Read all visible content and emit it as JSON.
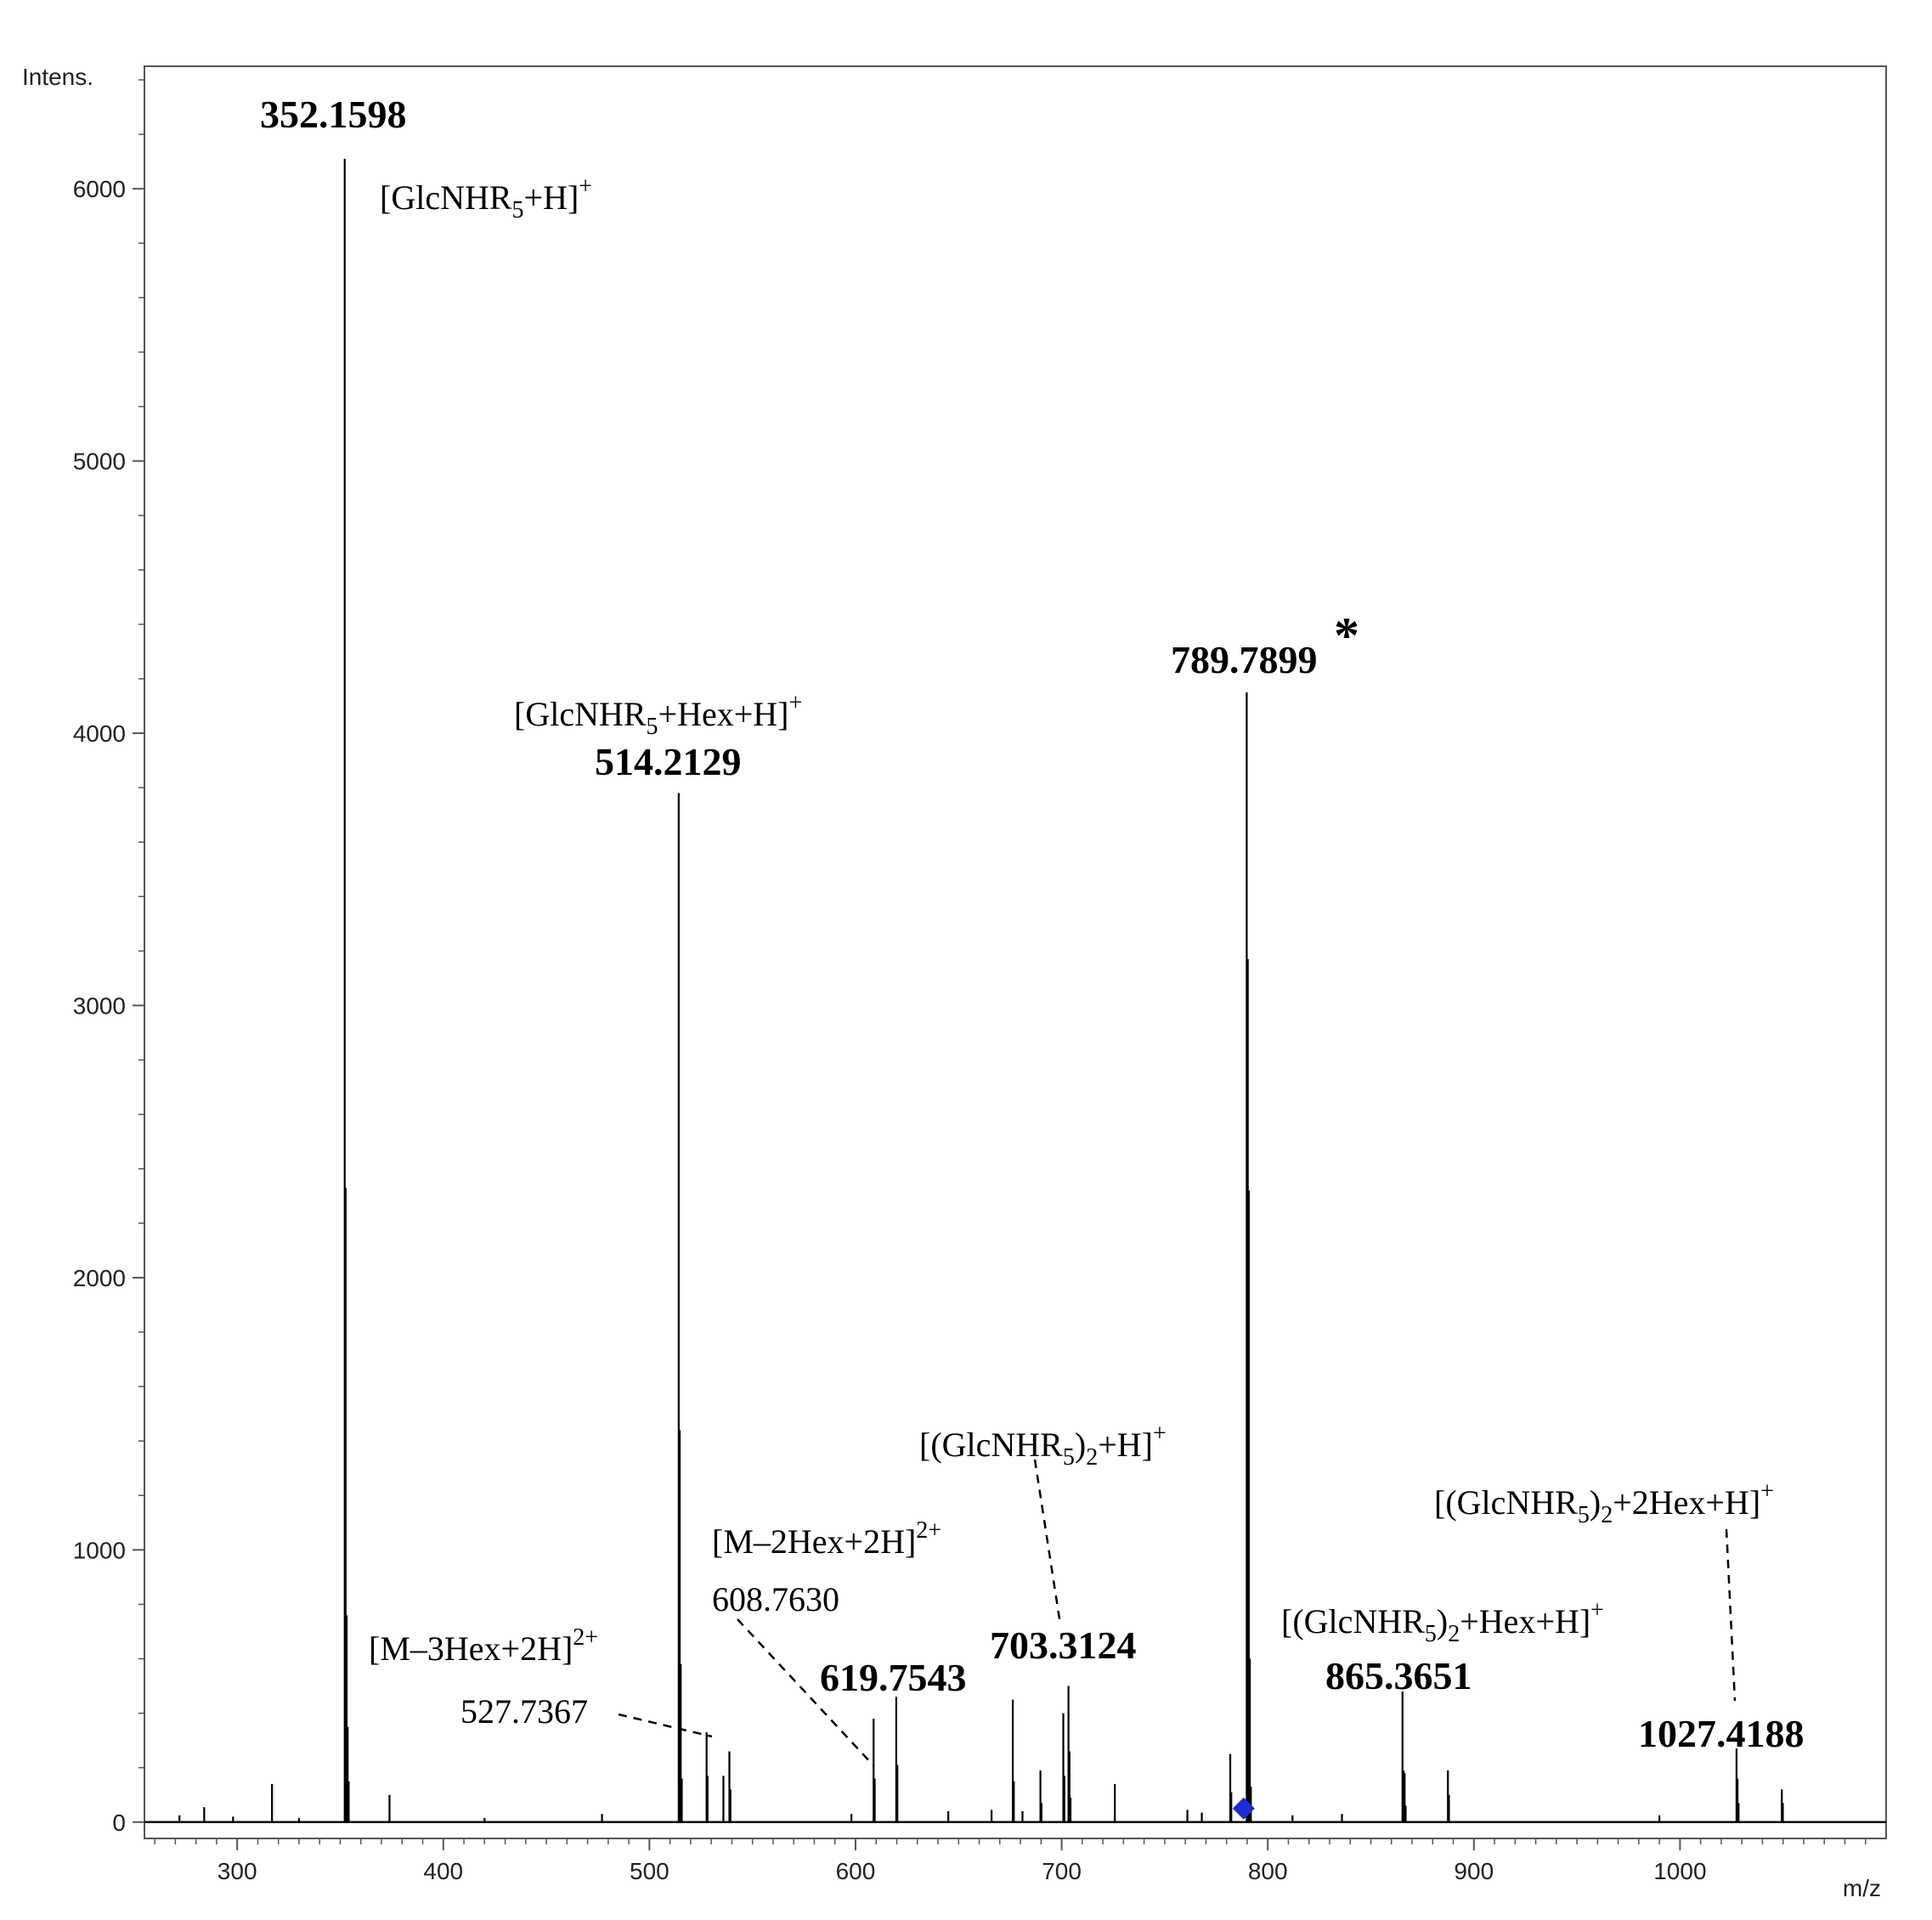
{
  "chart_data": {
    "type": "line",
    "y_axis_title": "Intens.",
    "x_axis_title": "m/z",
    "xlim": [
      255,
      1100
    ],
    "ylim": [
      -60,
      6450
    ],
    "x_ticks": [
      300,
      400,
      500,
      600,
      700,
      800,
      900,
      1000
    ],
    "y_ticks": [
      0,
      1000,
      2000,
      3000,
      4000,
      5000,
      6000
    ],
    "grid": false,
    "colors": {
      "trace": "#000000",
      "marker": "#1a2cd6"
    },
    "series": [
      {
        "peaks": [
          {
            "x": 272.0,
            "y": 25
          },
          {
            "x": 284.0,
            "y": 55
          },
          {
            "x": 298.0,
            "y": 20
          },
          {
            "x": 316.9,
            "y": 140
          },
          {
            "x": 330.0,
            "y": 15
          },
          {
            "x": 352.1598,
            "y": 6110
          },
          {
            "x": 352.6,
            "y": 2330
          },
          {
            "x": 353.1,
            "y": 760
          },
          {
            "x": 353.6,
            "y": 350
          },
          {
            "x": 354.1,
            "y": 150
          },
          {
            "x": 373.9,
            "y": 100
          },
          {
            "x": 420.0,
            "y": 15
          },
          {
            "x": 477.0,
            "y": 30
          },
          {
            "x": 514.2129,
            "y": 3780
          },
          {
            "x": 514.7,
            "y": 1440
          },
          {
            "x": 515.2,
            "y": 580
          },
          {
            "x": 515.7,
            "y": 160
          },
          {
            "x": 527.7367,
            "y": 330
          },
          {
            "x": 528.2,
            "y": 170
          },
          {
            "x": 535.9,
            "y": 170
          },
          {
            "x": 538.8,
            "y": 260
          },
          {
            "x": 539.3,
            "y": 120
          },
          {
            "x": 598.0,
            "y": 30
          },
          {
            "x": 608.763,
            "y": 380
          },
          {
            "x": 609.3,
            "y": 160
          },
          {
            "x": 619.7543,
            "y": 460
          },
          {
            "x": 620.3,
            "y": 210
          },
          {
            "x": 645.0,
            "y": 40
          },
          {
            "x": 666.0,
            "y": 45
          },
          {
            "x": 676.3,
            "y": 450
          },
          {
            "x": 676.8,
            "y": 150
          },
          {
            "x": 681.0,
            "y": 40
          },
          {
            "x": 689.7,
            "y": 190
          },
          {
            "x": 690.2,
            "y": 70
          },
          {
            "x": 700.8,
            "y": 400
          },
          {
            "x": 701.3,
            "y": 170
          },
          {
            "x": 703.3124,
            "y": 500
          },
          {
            "x": 703.8,
            "y": 260
          },
          {
            "x": 704.3,
            "y": 90
          },
          {
            "x": 725.8,
            "y": 140
          },
          {
            "x": 761.0,
            "y": 45
          },
          {
            "x": 768.0,
            "y": 35
          },
          {
            "x": 781.8,
            "y": 250
          },
          {
            "x": 782.3,
            "y": 110
          },
          {
            "x": 789.7899,
            "y": 4150
          },
          {
            "x": 790.3,
            "y": 3170
          },
          {
            "x": 790.8,
            "y": 2320
          },
          {
            "x": 791.3,
            "y": 600
          },
          {
            "x": 791.8,
            "y": 130
          },
          {
            "x": 812.0,
            "y": 25
          },
          {
            "x": 836.0,
            "y": 30
          },
          {
            "x": 865.3651,
            "y": 480
          },
          {
            "x": 865.9,
            "y": 190
          },
          {
            "x": 866.4,
            "y": 180
          },
          {
            "x": 866.9,
            "y": 60
          },
          {
            "x": 887.4,
            "y": 190
          },
          {
            "x": 887.9,
            "y": 100
          },
          {
            "x": 990.0,
            "y": 25
          },
          {
            "x": 1027.4188,
            "y": 270
          },
          {
            "x": 1027.9,
            "y": 160
          },
          {
            "x": 1028.4,
            "y": 70
          },
          {
            "x": 1049.4,
            "y": 120
          },
          {
            "x": 1049.9,
            "y": 70
          }
        ]
      }
    ],
    "marker": {
      "x": 788.3,
      "y": 50,
      "shape": "diamond"
    },
    "peak_labels": [
      {
        "key": "p352",
        "text": "352.1598"
      },
      {
        "key": "p514",
        "text": "514.2129"
      },
      {
        "key": "p789",
        "text": "789.7899"
      },
      {
        "key": "p527",
        "text": "527.7367"
      },
      {
        "key": "p608",
        "text": "608.7630"
      },
      {
        "key": "p619",
        "text": "619.7543"
      },
      {
        "key": "p703",
        "text": "703.3124"
      },
      {
        "key": "p865",
        "text": "865.3651"
      },
      {
        "key": "p1027",
        "text": "1027.4188"
      }
    ],
    "star": "*",
    "ion_labels": {
      "glcnhr5_h": {
        "pre": "[GlcNHR",
        "sub": "5",
        "post": "+H]",
        "sup": "+"
      },
      "glcnhr5_hex_h": {
        "pre": "[GlcNHR",
        "sub": "5",
        "post": "+Hex+H]",
        "sup": "+"
      },
      "m_3hex": {
        "pre": "[M–3Hex+2H]",
        "sub": "",
        "post": "",
        "sup": "2+"
      },
      "m_2hex": {
        "pre": "[M–2Hex+2H]",
        "sub": "",
        "post": "",
        "sup": "2+"
      },
      "dimer_h": {
        "pre": "[(GlcNHR",
        "sub": "5",
        "mid": ")",
        "sub2": "2",
        "post": "+H]",
        "sup": "+"
      },
      "dimer_hex_h": {
        "pre": "[(GlcNHR",
        "sub": "5",
        "mid": ")",
        "sub2": "2",
        "post": "+Hex+H]",
        "sup": "+"
      },
      "dimer_2hex_h": {
        "pre": "[(GlcNHR",
        "sub": "5",
        "mid": ")",
        "sub2": "2",
        "post": "+2Hex+H]",
        "sup": "+"
      }
    }
  }
}
